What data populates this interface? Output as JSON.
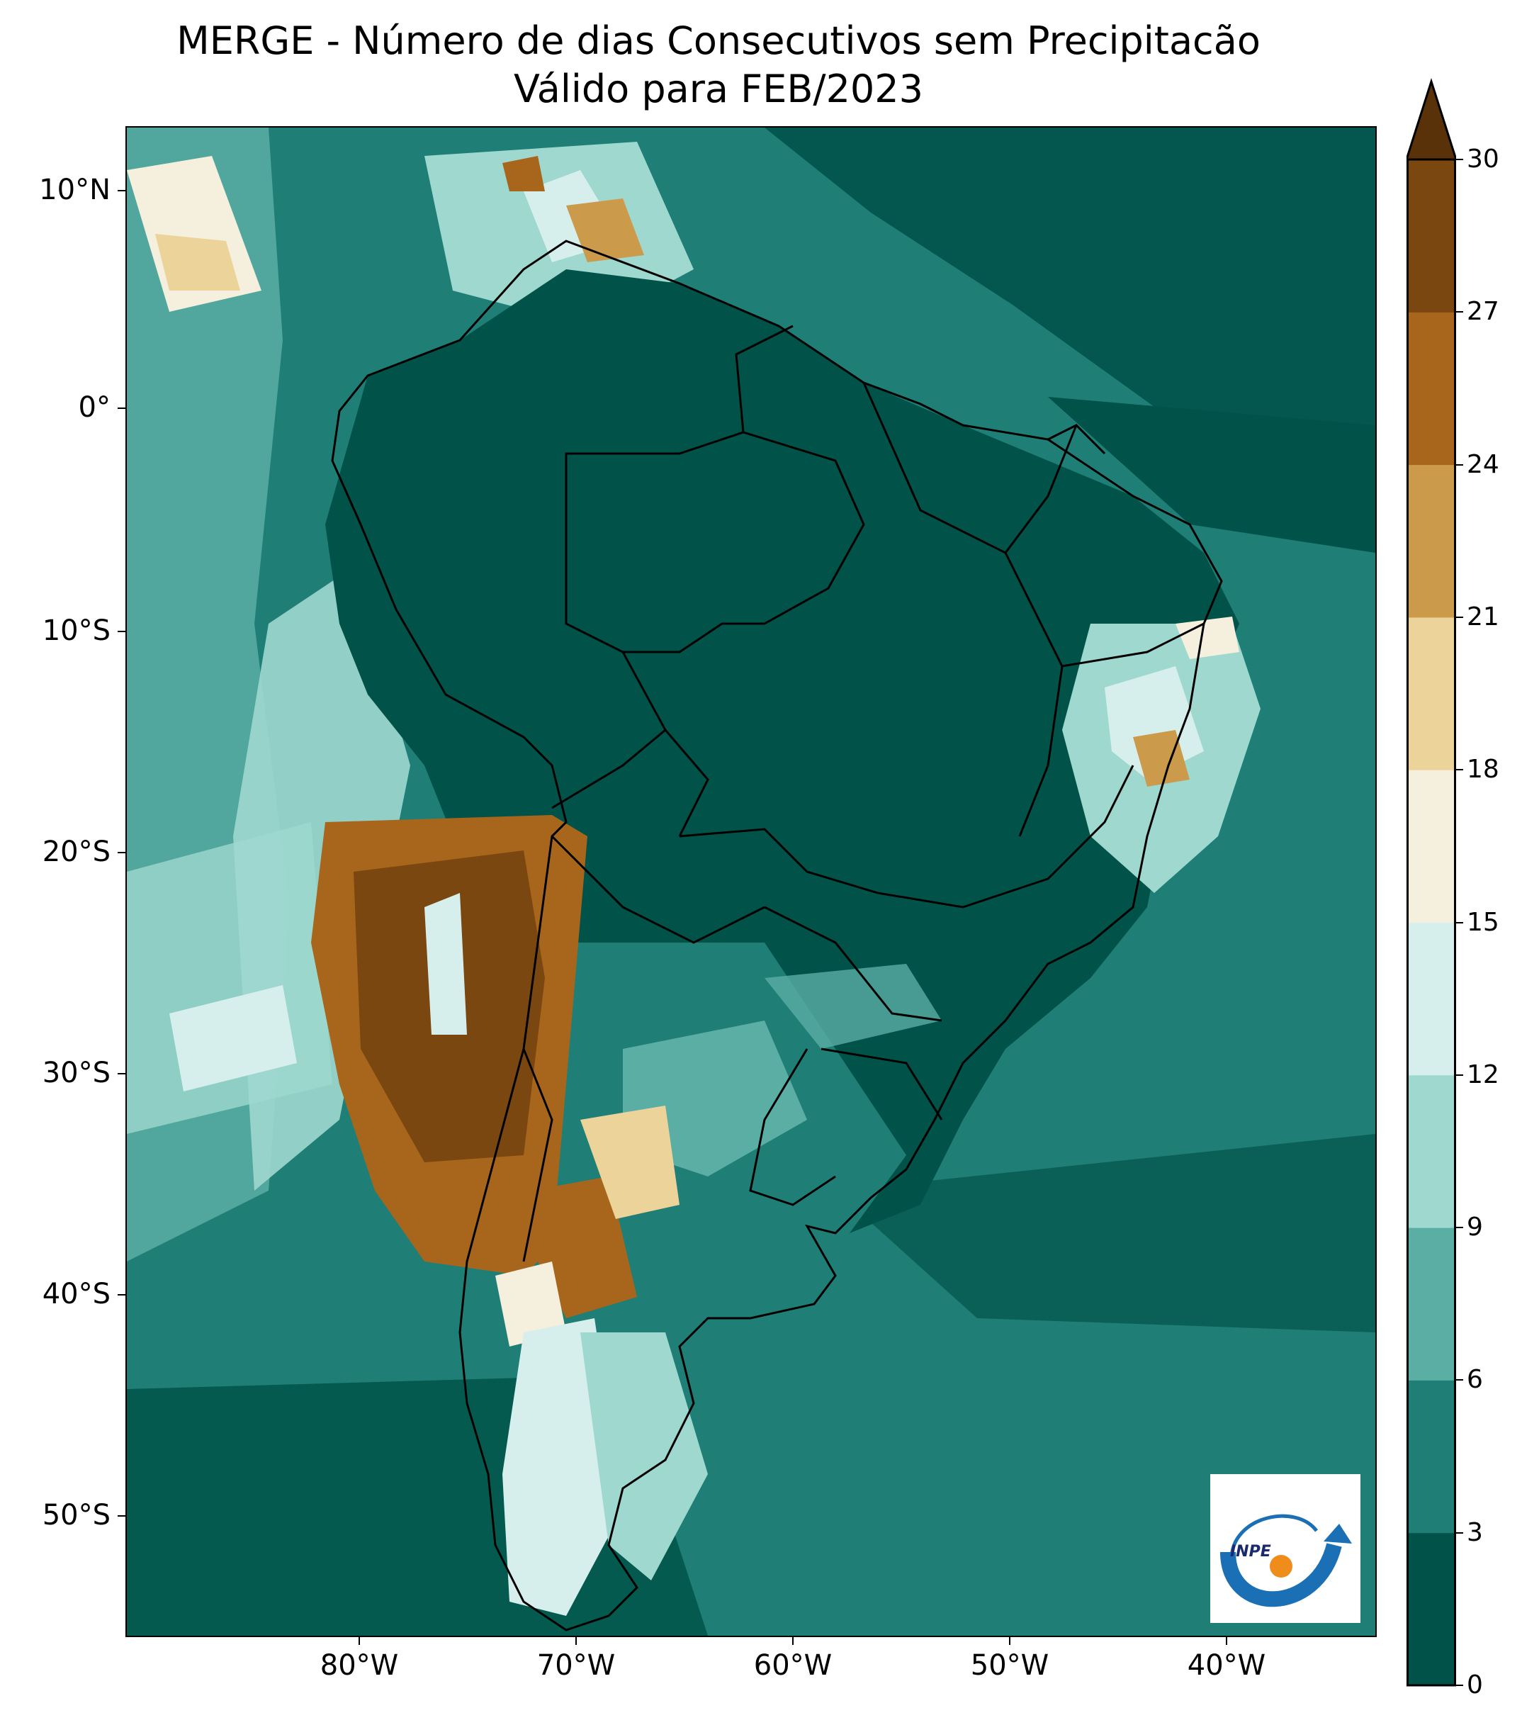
{
  "title": {
    "line1": "MERGE - Número de dias Consecutivos sem Precipitacão",
    "line2": "Válido para FEB/2023"
  },
  "map": {
    "lat_labels": [
      "10°N",
      "0°",
      "10°S",
      "20°S",
      "30°S",
      "40°S",
      "50°S"
    ],
    "lon_labels": [
      "80°W",
      "70°W",
      "60°W",
      "50°W",
      "40°W"
    ]
  },
  "colorbar": {
    "levels": [
      "0",
      "3",
      "6",
      "9",
      "12",
      "15",
      "18",
      "21",
      "24",
      "27",
      "30"
    ],
    "colors": [
      "#01534a",
      "#1f7f76",
      "#5aaea4",
      "#9fd8cf",
      "#d7efec",
      "#f5efdd",
      "#ebd39a",
      "#cc9a4b",
      "#a8661c",
      "#7a4710",
      "#5a320a"
    ],
    "extend": "max"
  },
  "logo": {
    "text": "INPE"
  }
}
